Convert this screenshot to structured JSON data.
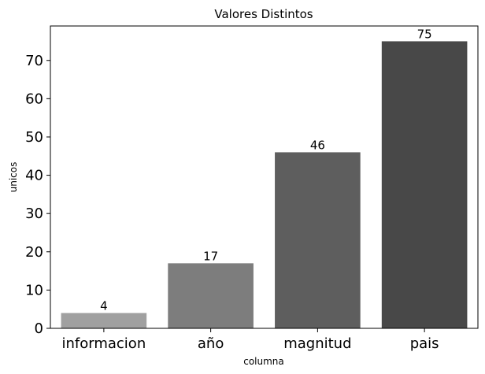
{
  "chart_data": {
    "type": "bar",
    "title": "Valores Distintos",
    "xlabel": "columna",
    "ylabel": "unicos",
    "categories": [
      "informacion",
      "año",
      "magnitud",
      "pais"
    ],
    "values": [
      4,
      17,
      46,
      75
    ],
    "data_labels": [
      "4",
      "17",
      "46",
      "75"
    ],
    "colors": [
      "#a0a0a0",
      "#7d7d7d",
      "#5e5e5e",
      "#484848"
    ],
    "ylim": [
      0,
      79
    ],
    "yticks": [
      0,
      10,
      20,
      30,
      40,
      50,
      60,
      70
    ],
    "grid": false,
    "legend": "none"
  }
}
